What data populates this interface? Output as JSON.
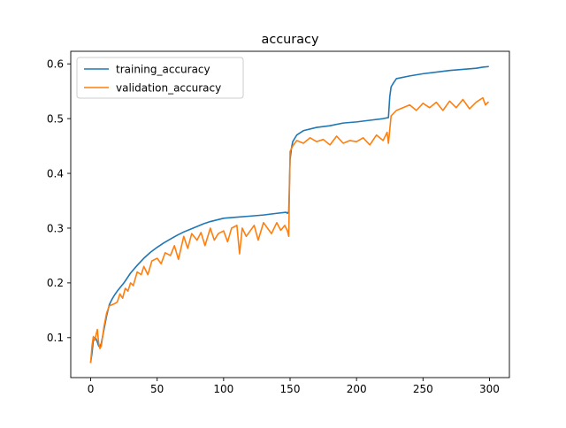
{
  "chart_data": {
    "type": "line",
    "title": "accuracy",
    "xlabel": "",
    "ylabel": "",
    "xlim": [
      -15,
      315
    ],
    "ylim": [
      0.027,
      0.623
    ],
    "xticks": [
      0,
      50,
      100,
      150,
      200,
      250,
      300
    ],
    "yticks": [
      0.1,
      0.2,
      0.3,
      0.4,
      0.5,
      0.6
    ],
    "grid": false,
    "legend": {
      "position": "upper-left"
    },
    "series": [
      {
        "name": "training_accuracy",
        "color": "#1f77b4",
        "x": [
          0,
          1,
          2,
          3,
          4,
          5,
          6,
          7,
          8,
          10,
          12,
          14,
          16,
          18,
          20,
          25,
          30,
          35,
          40,
          45,
          50,
          55,
          60,
          65,
          70,
          75,
          80,
          85,
          90,
          95,
          100,
          110,
          120,
          130,
          140,
          147,
          148,
          149,
          150,
          151,
          152,
          155,
          160,
          170,
          180,
          190,
          200,
          210,
          220,
          224,
          225,
          226,
          228,
          230,
          240,
          250,
          260,
          270,
          280,
          290,
          295,
          299
        ],
        "y": [
          0.055,
          0.072,
          0.095,
          0.1,
          0.098,
          0.092,
          0.085,
          0.082,
          0.09,
          0.115,
          0.14,
          0.16,
          0.17,
          0.178,
          0.185,
          0.2,
          0.218,
          0.232,
          0.245,
          0.256,
          0.265,
          0.273,
          0.28,
          0.287,
          0.293,
          0.298,
          0.303,
          0.308,
          0.312,
          0.315,
          0.318,
          0.32,
          0.322,
          0.324,
          0.327,
          0.329,
          0.327,
          0.33,
          0.425,
          0.445,
          0.458,
          0.47,
          0.478,
          0.484,
          0.487,
          0.492,
          0.494,
          0.497,
          0.5,
          0.502,
          0.54,
          0.558,
          0.566,
          0.573,
          0.578,
          0.582,
          0.585,
          0.588,
          0.59,
          0.592,
          0.594,
          0.595
        ]
      },
      {
        "name": "validation_accuracy",
        "color": "#ff7f0e",
        "x": [
          0,
          1,
          2,
          3,
          4,
          5,
          6,
          7,
          8,
          10,
          12,
          14,
          16,
          18,
          20,
          22,
          24,
          26,
          28,
          30,
          32,
          35,
          38,
          40,
          43,
          46,
          50,
          53,
          56,
          60,
          63,
          66,
          70,
          73,
          76,
          80,
          83,
          86,
          90,
          93,
          96,
          100,
          103,
          106,
          110,
          112,
          114,
          117,
          120,
          123,
          126,
          130,
          133,
          136,
          140,
          143,
          146,
          148,
          149,
          150,
          152,
          155,
          160,
          165,
          170,
          175,
          180,
          185,
          190,
          195,
          200,
          205,
          210,
          215,
          220,
          223,
          224,
          226,
          228,
          230,
          235,
          240,
          245,
          250,
          255,
          260,
          265,
          270,
          275,
          280,
          285,
          290,
          295,
          297,
          299
        ],
        "y": [
          0.055,
          0.085,
          0.102,
          0.095,
          0.105,
          0.115,
          0.09,
          0.08,
          0.085,
          0.12,
          0.145,
          0.158,
          0.16,
          0.162,
          0.165,
          0.18,
          0.172,
          0.19,
          0.185,
          0.2,
          0.195,
          0.22,
          0.215,
          0.23,
          0.215,
          0.24,
          0.245,
          0.235,
          0.255,
          0.25,
          0.268,
          0.243,
          0.285,
          0.263,
          0.29,
          0.278,
          0.292,
          0.268,
          0.3,
          0.278,
          0.29,
          0.295,
          0.275,
          0.3,
          0.305,
          0.253,
          0.3,
          0.285,
          0.295,
          0.305,
          0.278,
          0.31,
          0.3,
          0.29,
          0.31,
          0.296,
          0.305,
          0.295,
          0.285,
          0.44,
          0.45,
          0.46,
          0.455,
          0.465,
          0.458,
          0.462,
          0.452,
          0.468,
          0.455,
          0.46,
          0.458,
          0.465,
          0.452,
          0.47,
          0.46,
          0.475,
          0.455,
          0.505,
          0.51,
          0.515,
          0.52,
          0.525,
          0.515,
          0.528,
          0.52,
          0.53,
          0.515,
          0.532,
          0.52,
          0.535,
          0.518,
          0.53,
          0.538,
          0.525,
          0.53
        ]
      }
    ]
  }
}
